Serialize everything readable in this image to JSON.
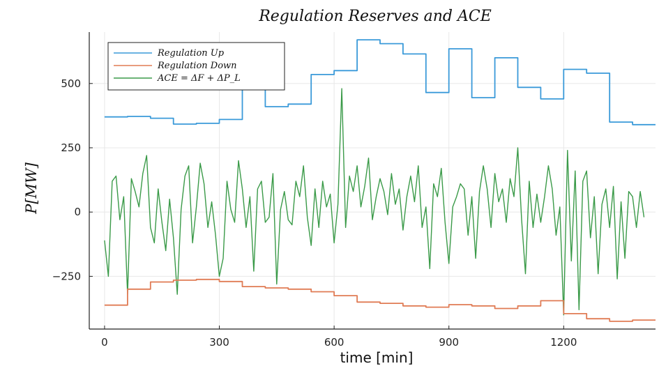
{
  "chart_data": {
    "type": "line",
    "title": "Regulation Reserves and ACE",
    "xlabel": "time [min]",
    "ylabel": "P[MW]",
    "xlim": [
      -40,
      1440
    ],
    "ylim": [
      -455,
      700
    ],
    "xticks": [
      0,
      300,
      600,
      900,
      1200
    ],
    "xtick_labels": [
      "0",
      "300",
      "600",
      "900",
      "1200"
    ],
    "yticks": [
      -250,
      0,
      250,
      500
    ],
    "ytick_labels": [
      "−250",
      "0",
      "250",
      "500"
    ],
    "grid": true,
    "legend_position": "top-left",
    "series": [
      {
        "name": "Regulation Up",
        "color": "#3a9ad9",
        "step": true,
        "x": [
          0,
          60,
          120,
          180,
          240,
          300,
          360,
          420,
          480,
          540,
          600,
          660,
          720,
          780,
          840,
          900,
          960,
          1020,
          1080,
          1140,
          1200,
          1260,
          1320,
          1380,
          1440
        ],
        "y": [
          370,
          372,
          365,
          342,
          345,
          360,
          590,
          410,
          420,
          535,
          550,
          670,
          655,
          615,
          465,
          635,
          445,
          600,
          485,
          440,
          555,
          540,
          350,
          340,
          340
        ]
      },
      {
        "name": "Regulation Down",
        "color": "#e07b54",
        "step": true,
        "x": [
          0,
          60,
          120,
          180,
          240,
          300,
          360,
          420,
          480,
          540,
          600,
          660,
          720,
          780,
          840,
          900,
          960,
          1020,
          1080,
          1140,
          1200,
          1260,
          1320,
          1380,
          1440
        ],
        "y": [
          -362,
          -300,
          -272,
          -265,
          -262,
          -270,
          -290,
          -295,
          -300,
          -310,
          -325,
          -350,
          -355,
          -365,
          -370,
          -360,
          -365,
          -375,
          -365,
          -345,
          -395,
          -415,
          -425,
          -420,
          -420
        ]
      },
      {
        "name": "ACE = ΔF + ΔP_L",
        "color": "#3a9a48",
        "step": false,
        "x": [
          0,
          10,
          20,
          30,
          40,
          50,
          60,
          70,
          80,
          90,
          100,
          110,
          120,
          130,
          140,
          150,
          160,
          170,
          180,
          190,
          200,
          210,
          220,
          230,
          240,
          250,
          260,
          270,
          280,
          290,
          300,
          310,
          320,
          330,
          340,
          350,
          360,
          370,
          380,
          390,
          400,
          410,
          420,
          430,
          440,
          450,
          460,
          470,
          480,
          490,
          500,
          510,
          520,
          530,
          540,
          550,
          560,
          570,
          580,
          590,
          600,
          610,
          620,
          630,
          640,
          650,
          660,
          670,
          680,
          690,
          700,
          710,
          720,
          730,
          740,
          750,
          760,
          770,
          780,
          790,
          800,
          810,
          820,
          830,
          840,
          850,
          860,
          870,
          880,
          890,
          900,
          910,
          920,
          930,
          940,
          950,
          960,
          970,
          980,
          990,
          1000,
          1010,
          1020,
          1030,
          1040,
          1050,
          1060,
          1070,
          1080,
          1090,
          1100,
          1110,
          1120,
          1130,
          1140,
          1150,
          1160,
          1170,
          1180,
          1190,
          1200,
          1210,
          1220,
          1230,
          1240,
          1250,
          1260,
          1270,
          1280,
          1290,
          1300,
          1310,
          1320,
          1330,
          1340,
          1350,
          1360,
          1370,
          1380,
          1390,
          1400,
          1410
        ],
        "y": [
          -110,
          -250,
          120,
          140,
          -30,
          60,
          -320,
          130,
          80,
          20,
          150,
          220,
          -60,
          -120,
          90,
          -40,
          -150,
          50,
          -100,
          -320,
          10,
          140,
          180,
          -120,
          20,
          190,
          110,
          -60,
          40,
          -90,
          -250,
          -180,
          120,
          10,
          -40,
          200,
          90,
          -60,
          60,
          -230,
          90,
          120,
          -40,
          -20,
          150,
          -280,
          10,
          80,
          -30,
          -50,
          120,
          60,
          180,
          -20,
          -130,
          90,
          -60,
          120,
          20,
          70,
          -120,
          30,
          480,
          -60,
          140,
          80,
          180,
          20,
          100,
          210,
          -30,
          60,
          130,
          80,
          -10,
          150,
          30,
          90,
          -70,
          60,
          140,
          40,
          180,
          -60,
          20,
          -220,
          110,
          60,
          170,
          -40,
          -200,
          20,
          60,
          110,
          90,
          -90,
          60,
          -180,
          80,
          180,
          90,
          -60,
          150,
          40,
          90,
          -40,
          130,
          60,
          250,
          -30,
          -240,
          120,
          -60,
          70,
          -40,
          60,
          180,
          90,
          -90,
          20,
          -400,
          240,
          -190,
          160,
          -380,
          120,
          160,
          -100,
          60,
          -240,
          30,
          90,
          -60,
          100,
          -260,
          40,
          -180,
          80,
          60,
          -60,
          80,
          -20
        ]
      }
    ]
  }
}
